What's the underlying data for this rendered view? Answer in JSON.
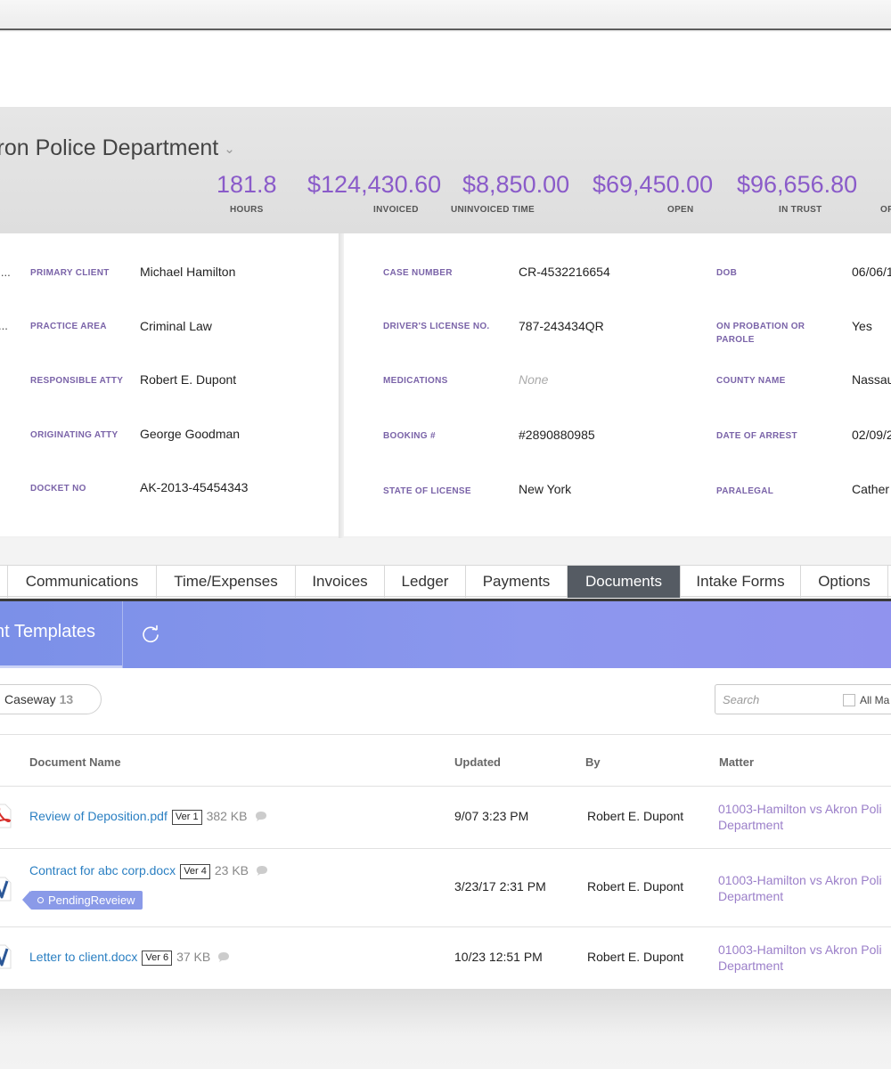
{
  "header": {
    "title": "kron Police Department",
    "stats": [
      {
        "value": "181.8",
        "label": "HOURS"
      },
      {
        "value": "$124,430.60",
        "label": "INVOICED"
      },
      {
        "value": "$8,850.00",
        "label": "UNINVOICED TIME"
      },
      {
        "value": "$69,450.00",
        "label": "OPEN"
      },
      {
        "value": "$96,656.80",
        "label": "IN TRUST"
      },
      {
        "value": "",
        "label": "OF"
      }
    ]
  },
  "details": {
    "left_truncated": [
      "l...",
      "..."
    ],
    "left": [
      {
        "label": "PRIMARY CLIENT",
        "value": "Michael Hamilton"
      },
      {
        "label": "PRACTICE AREA",
        "value": "Criminal Law"
      },
      {
        "label": "RESPONSIBLE ATTY",
        "value": "Robert E. Dupont"
      },
      {
        "label": "ORIGINATING ATTY",
        "value": "George Goodman"
      },
      {
        "label": "DOCKET NO",
        "value": "AK-2013-45454343"
      }
    ],
    "middle": [
      {
        "label": "CASE NUMBER",
        "value": "CR-4532216654"
      },
      {
        "label": "DRIVER'S LICENSE NO.",
        "value": "787-243434QR"
      },
      {
        "label": "MEDICATIONS",
        "value": "None"
      },
      {
        "label": "BOOKING #",
        "value": "#2890880985"
      },
      {
        "label": "STATE OF LICENSE",
        "value": "New York"
      }
    ],
    "right": [
      {
        "label": "DOB",
        "value": "06/06/1"
      },
      {
        "label": "ON PROBATION OR PAROLE",
        "value": "Yes"
      },
      {
        "label": "COUNTY NAME",
        "value": "Nassau"
      },
      {
        "label": "DATE OF ARREST",
        "value": "02/09/2"
      },
      {
        "label": "PARALEGAL",
        "value": "Cather"
      }
    ]
  },
  "tabs": [
    "Communications",
    "Time/Expenses",
    "Invoices",
    "Ledger",
    "Payments",
    "Documents",
    "Intake Forms",
    "Options"
  ],
  "active_tab": "Documents",
  "toolbar": {
    "section_label": "nt Templates"
  },
  "filter": {
    "source_label": "Caseway",
    "source_count": "13"
  },
  "search": {
    "placeholder": "Search",
    "all_matters_label": "All Ma"
  },
  "table": {
    "columns": [
      "Document Name",
      "Updated",
      "By",
      "Matter"
    ],
    "rows": [
      {
        "icon": "pdf-file-icon",
        "name": "Review of Deposition.pdf",
        "version": "Ver 1",
        "size": "382 KB",
        "updated": "9/07 3:23 PM",
        "by": "Robert E. Dupont",
        "matter_line1": "01003-Hamilton vs Akron Poli",
        "matter_line2": "Department",
        "tag": ""
      },
      {
        "icon": "word-file-icon",
        "name": "Contract for abc corp.docx",
        "version": "Ver 4",
        "size": "23 KB",
        "updated": "3/23/17 2:31 PM",
        "by": "Robert E. Dupont",
        "matter_line1": "01003-Hamilton vs Akron Poli",
        "matter_line2": "Department",
        "tag": "PendingReveiew"
      },
      {
        "icon": "word-file-icon",
        "name": "Letter to client.docx",
        "version": "Ver 6",
        "size": "37 KB",
        "updated": "10/23 12:51 PM",
        "by": "Robert E. Dupont",
        "matter_line1": "01003-Hamilton vs Akron Poli",
        "matter_line2": "Department",
        "tag": ""
      }
    ]
  },
  "colors": {
    "accent_purple": "#8a5bc9",
    "label_purple": "#7a63a8",
    "link_blue": "#2a7fc2",
    "toolbar_blue": "#8a97ee",
    "active_tab": "#555b63"
  }
}
